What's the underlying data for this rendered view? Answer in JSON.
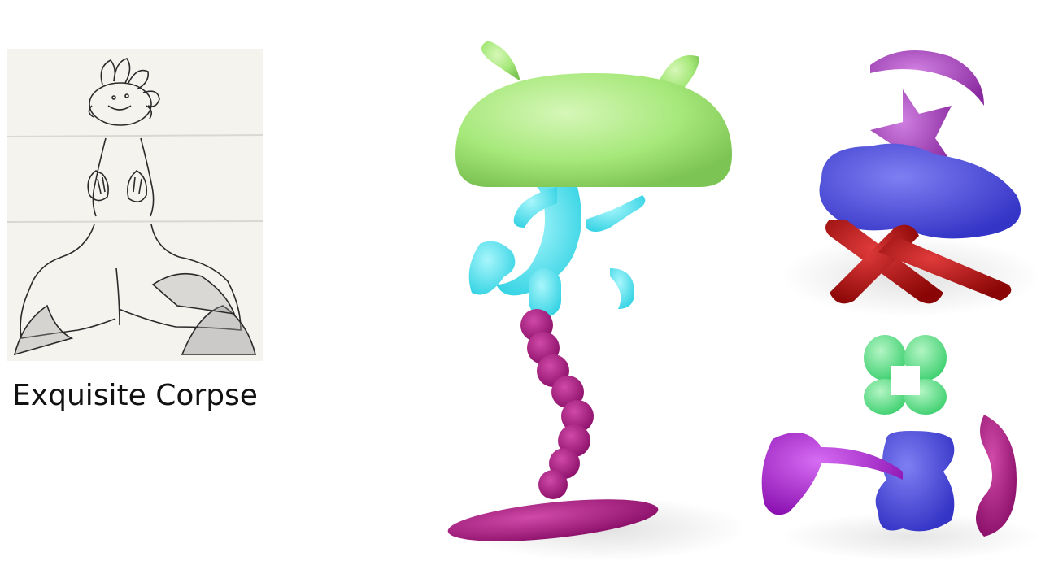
{
  "caption": {
    "text": "Exquisite Corpse"
  },
  "colors": {
    "paper": "#f4f3ee",
    "ink": "#2a2a2a",
    "green": "#a6e87a",
    "cyan": "#4fe3f0",
    "magenta": "#a3177d",
    "purple": "#a341b8",
    "blue": "#4a4ae6",
    "red": "#b00e0e",
    "mint": "#6ee891",
    "violet": "#a01ac6"
  },
  "icons": [
    "exquisite-corpse-sketch",
    "composite-creature-model",
    "stacked-parts-model",
    "assembled-parts-model"
  ]
}
